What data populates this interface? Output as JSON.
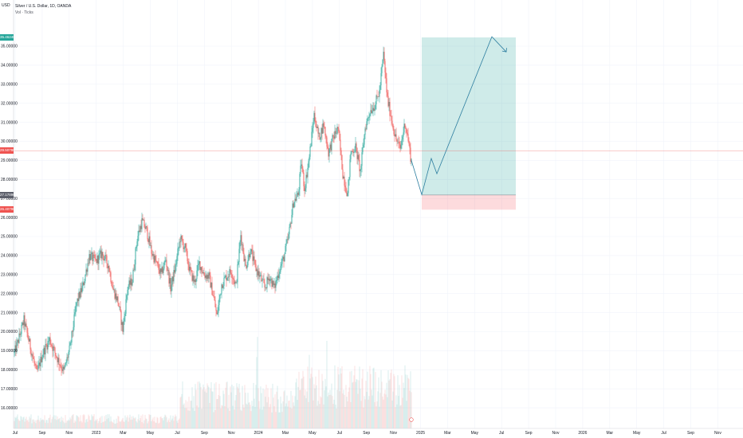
{
  "header": {
    "currency": "USD",
    "title": "Silver / U.S. Dollar, 1D, OANDA",
    "volume_label": "Vol · Ticks"
  },
  "price_tags": {
    "target": "35.46240",
    "current": "29.50780",
    "entry": "27.17896",
    "stop": "26.40796"
  },
  "colors": {
    "up": "#26a69a",
    "down": "#ef5350",
    "target_zone": "#26a69a",
    "stop_zone": "#f23645",
    "projection": "#2d7ea0"
  },
  "chart_data": {
    "type": "candlestick",
    "title": "Silver / U.S. Dollar, 1D, OANDA",
    "ylabel": "USD",
    "ylim": [
      15.3,
      36.5
    ],
    "y_ticks": [
      16,
      17,
      18,
      19,
      20,
      21,
      22,
      23,
      24,
      25,
      26,
      27,
      28,
      29,
      30,
      31,
      32,
      33,
      34,
      35
    ],
    "y_tick_labels": [
      "16.00000",
      "17.00000",
      "18.00000",
      "19.00000",
      "20.00000",
      "21.00000",
      "22.00000",
      "23.00000",
      "24.00000",
      "25.00000",
      "26.00000",
      "27.00000",
      "28.00000",
      "29.00000",
      "30.00000",
      "31.00000",
      "32.00000",
      "33.00000",
      "34.00000",
      "35.00000"
    ],
    "x_ticks": [
      "Jul",
      "Sep",
      "Nov",
      "2023",
      "Mar",
      "May",
      "Jul",
      "Sep",
      "Nov",
      "2024",
      "Mar",
      "May",
      "Jul",
      "Sep",
      "Nov",
      "2025",
      "Mar",
      "May",
      "Jul",
      "Sep",
      "Nov",
      "2026",
      "Mar",
      "May",
      "Jul",
      "Sep",
      "Nov"
    ],
    "price_path": [
      [
        0,
        20.9
      ],
      [
        8,
        19.6
      ],
      [
        15,
        18.5
      ],
      [
        22,
        19.4
      ],
      [
        30,
        20.6
      ],
      [
        38,
        19.2
      ],
      [
        46,
        17.8
      ],
      [
        54,
        18.9
      ],
      [
        62,
        19.6
      ],
      [
        72,
        18.6
      ],
      [
        80,
        17.9
      ],
      [
        88,
        19.2
      ],
      [
        96,
        21.5
      ],
      [
        104,
        22.4
      ],
      [
        112,
        24.0
      ],
      [
        120,
        23.7
      ],
      [
        128,
        24.1
      ],
      [
        136,
        23.5
      ],
      [
        142,
        22.2
      ],
      [
        148,
        21.6
      ],
      [
        154,
        20.1
      ],
      [
        160,
        22.3
      ],
      [
        166,
        22.7
      ],
      [
        172,
        24.9
      ],
      [
        178,
        25.8
      ],
      [
        184,
        25.3
      ],
      [
        190,
        24.2
      ],
      [
        196,
        23.6
      ],
      [
        202,
        23.0
      ],
      [
        208,
        23.8
      ],
      [
        214,
        22.3
      ],
      [
        220,
        23.4
      ],
      [
        226,
        24.9
      ],
      [
        232,
        24.4
      ],
      [
        238,
        23.2
      ],
      [
        244,
        22.6
      ],
      [
        250,
        23.6
      ],
      [
        256,
        23.0
      ],
      [
        262,
        22.9
      ],
      [
        268,
        21.8
      ],
      [
        272,
        20.8
      ],
      [
        278,
        22.5
      ],
      [
        284,
        22.9
      ],
      [
        290,
        23.2
      ],
      [
        296,
        22.4
      ],
      [
        302,
        25.1
      ],
      [
        308,
        23.4
      ],
      [
        314,
        24.3
      ],
      [
        320,
        23.4
      ],
      [
        326,
        22.9
      ],
      [
        332,
        22.3
      ],
      [
        338,
        22.9
      ],
      [
        344,
        22.3
      ],
      [
        350,
        23.2
      ],
      [
        356,
        23.9
      ],
      [
        362,
        25.0
      ],
      [
        368,
        26.8
      ],
      [
        374,
        27.2
      ],
      [
        378,
        28.9
      ],
      [
        382,
        27.5
      ],
      [
        388,
        29.2
      ],
      [
        394,
        31.4
      ],
      [
        400,
        30.2
      ],
      [
        406,
        30.9
      ],
      [
        412,
        29.4
      ],
      [
        418,
        30.2
      ],
      [
        424,
        30.7
      ],
      [
        430,
        28.3
      ],
      [
        436,
        27.2
      ],
      [
        440,
        29.4
      ],
      [
        446,
        29.7
      ],
      [
        452,
        28.4
      ],
      [
        458,
        30.7
      ],
      [
        464,
        31.6
      ],
      [
        470,
        31.9
      ],
      [
        476,
        32.6
      ],
      [
        481,
        34.6
      ],
      [
        486,
        32.2
      ],
      [
        490,
        31.4
      ],
      [
        496,
        30.2
      ],
      [
        502,
        29.6
      ],
      [
        508,
        31.0
      ],
      [
        512,
        30.1
      ],
      [
        515,
        29.2
      ],
      [
        516,
        29.0
      ]
    ],
    "volume_bars": 500,
    "position": {
      "type": "long",
      "entry": 27.18,
      "target": 35.46,
      "stop": 26.41,
      "current": 29.51
    },
    "projection_path": [
      [
        516,
        29.0
      ],
      [
        529,
        27.2
      ],
      [
        541,
        29.1
      ],
      [
        548,
        28.3
      ],
      [
        617,
        35.5
      ],
      [
        635,
        34.7
      ]
    ]
  }
}
